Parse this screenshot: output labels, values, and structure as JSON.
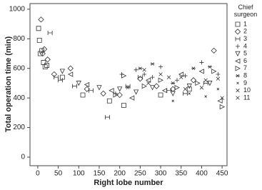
{
  "chart_data": {
    "type": "scatter",
    "y_label": "Total operation time (min)",
    "x_label": "Right lobe number",
    "legend_title": "Chief surgeon",
    "xlim": [
      -19,
      462
    ],
    "ylim": [
      -58,
      1038
    ],
    "xticks": [
      0,
      50,
      100,
      150,
      200,
      250,
      300,
      350,
      400,
      450
    ],
    "yticks": [
      0,
      200,
      400,
      600,
      800,
      1000
    ],
    "grid": false,
    "series": [
      {
        "name": "1",
        "marker": "square",
        "color": "#333333",
        "x": [
          2,
          4,
          6,
          10,
          14,
          18,
          22,
          60,
          110,
          175,
          210,
          300,
          370
        ],
        "values": [
          870,
          790,
          700,
          720,
          640,
          610,
          620,
          540,
          420,
          380,
          350,
          420,
          460
        ]
      },
      {
        "name": "2",
        "marker": "diamond",
        "color": "#333333",
        "x": [
          8,
          12,
          16,
          24,
          40,
          80,
          120,
          160,
          200,
          250,
          290,
          330,
          380,
          430
        ],
        "values": [
          930,
          700,
          730,
          660,
          560,
          600,
          460,
          430,
          420,
          530,
          480,
          460,
          520,
          720
        ]
      },
      {
        "name": "3",
        "marker": "ibeam",
        "color": "#333333",
        "x": [
          30,
          45,
          55,
          90,
          130,
          170,
          220,
          250,
          320,
          360,
          410
        ],
        "values": [
          840,
          540,
          520,
          480,
          450,
          270,
          480,
          540,
          450,
          430,
          500
        ]
      },
      {
        "name": "4",
        "marker": "plus",
        "color": "#333333",
        "x": [
          190,
          205,
          240,
          260,
          280,
          300,
          340,
          360,
          400,
          440
        ],
        "values": [
          430,
          560,
          590,
          560,
          540,
          610,
          520,
          550,
          640,
          560
        ]
      },
      {
        "name": "5",
        "marker": "triangle-down",
        "color": "#333333",
        "x": [
          60,
          100,
          150,
          200,
          240,
          280,
          330,
          370,
          420
        ],
        "values": [
          580,
          500,
          470,
          460,
          440,
          470,
          430,
          480,
          500
        ]
      },
      {
        "name": "6",
        "marker": "triangle-left",
        "color": "#333333",
        "x": [
          80,
          120,
          180,
          230,
          270,
          310,
          350,
          400,
          445
        ],
        "values": [
          560,
          490,
          450,
          400,
          520,
          450,
          560,
          580,
          380
        ]
      },
      {
        "name": "7",
        "marker": "triangle-right",
        "color": "#333333",
        "x": [
          190,
          210,
          260,
          300,
          340,
          390,
          430,
          450
        ],
        "values": [
          420,
          550,
          480,
          520,
          470,
          500,
          580,
          340
        ]
      },
      {
        "name": "8",
        "marker": "star",
        "color": "#333333",
        "x": [
          220,
          250,
          280,
          330,
          380,
          420
        ],
        "values": [
          470,
          600,
          630,
          500,
          600,
          610
        ]
      },
      {
        "name": "9",
        "marker": "dot",
        "color": "#333333",
        "x": [
          330,
          370,
          410,
          440
        ],
        "values": [
          380,
          430,
          410,
          460
        ]
      },
      {
        "name": "10",
        "marker": "cross",
        "color": "#333333",
        "x": [
          260,
          300,
          350,
          400,
          440
        ],
        "values": [
          590,
          560,
          540,
          470,
          530
        ]
      },
      {
        "name": "11",
        "marker": "cross",
        "color": "#333333",
        "x": [
          270,
          320,
          360,
          410,
          450
        ],
        "values": [
          500,
          540,
          460,
          520,
          400
        ]
      }
    ]
  }
}
